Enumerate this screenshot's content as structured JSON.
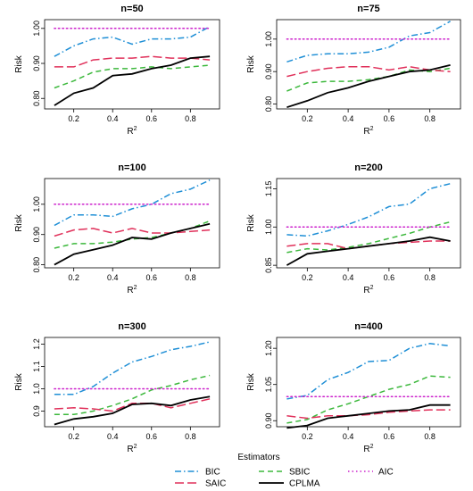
{
  "legend": {
    "title": "Estimators",
    "position": "bottom",
    "entries": [
      {
        "name": "BIC",
        "color": "#1f8fd6",
        "dash": "dashdot"
      },
      {
        "name": "SBIC",
        "color": "#3cb83c",
        "dash": "dashed"
      },
      {
        "name": "AIC",
        "color": "#cc22cc",
        "dash": "dotted"
      },
      {
        "name": "SAIC",
        "color": "#e0305a",
        "dash": "longdash"
      },
      {
        "name": "CPLMA",
        "color": "#000000",
        "dash": "solid"
      }
    ]
  },
  "chart_data": [
    {
      "type": "line",
      "title": "n=50",
      "xlabel": "R",
      "xlabel_sup": "2",
      "ylabel": "Risk",
      "xlim": [
        0.05,
        0.95
      ],
      "ylim": [
        0.77,
        1.025
      ],
      "xticks": [
        0.2,
        0.4,
        0.6,
        0.8
      ],
      "xtick_labels": [
        "0.2",
        "0.4",
        "0.6",
        "0.8"
      ],
      "yticks": [
        0.8,
        0.9,
        1.0
      ],
      "ytick_labels": [
        "0.80",
        "0.90",
        "1.00"
      ],
      "x": [
        0.1,
        0.2,
        0.3,
        0.4,
        0.5,
        0.6,
        0.7,
        0.8,
        0.9
      ],
      "series": [
        {
          "name": "BIC",
          "values": [
            0.92,
            0.95,
            0.97,
            0.975,
            0.955,
            0.97,
            0.97,
            0.975,
            1.005
          ]
        },
        {
          "name": "SBIC",
          "values": [
            0.83,
            0.85,
            0.875,
            0.885,
            0.885,
            0.89,
            0.885,
            0.89,
            0.895
          ]
        },
        {
          "name": "AIC",
          "values": [
            1.0,
            1.0,
            1.0,
            1.0,
            1.0,
            1.0,
            1.0,
            1.0,
            1.0
          ]
        },
        {
          "name": "SAIC",
          "values": [
            0.89,
            0.89,
            0.91,
            0.915,
            0.915,
            0.92,
            0.915,
            0.915,
            0.91
          ]
        },
        {
          "name": "CPLMA",
          "values": [
            0.78,
            0.815,
            0.83,
            0.865,
            0.87,
            0.885,
            0.895,
            0.915,
            0.92
          ]
        }
      ]
    },
    {
      "type": "line",
      "title": "n=75",
      "xlabel": "R",
      "xlabel_sup": "2",
      "ylabel": "Risk",
      "xlim": [
        0.05,
        0.95
      ],
      "ylim": [
        0.785,
        1.06
      ],
      "xticks": [
        0.2,
        0.4,
        0.6,
        0.8
      ],
      "xtick_labels": [
        "0.2",
        "0.4",
        "0.6",
        "0.8"
      ],
      "yticks": [
        0.8,
        0.9,
        1.0
      ],
      "ytick_labels": [
        "0.80",
        "0.90",
        "1.00"
      ],
      "x": [
        0.1,
        0.2,
        0.3,
        0.4,
        0.5,
        0.6,
        0.7,
        0.8,
        0.9
      ],
      "series": [
        {
          "name": "BIC",
          "values": [
            0.93,
            0.95,
            0.955,
            0.955,
            0.96,
            0.975,
            1.01,
            1.02,
            1.055
          ]
        },
        {
          "name": "SBIC",
          "values": [
            0.84,
            0.865,
            0.87,
            0.87,
            0.875,
            0.885,
            0.905,
            0.9,
            0.91
          ]
        },
        {
          "name": "AIC",
          "values": [
            1.0,
            1.0,
            1.0,
            1.0,
            1.0,
            1.0,
            1.0,
            1.0,
            1.0
          ]
        },
        {
          "name": "SAIC",
          "values": [
            0.885,
            0.9,
            0.91,
            0.915,
            0.915,
            0.905,
            0.915,
            0.905,
            0.9
          ]
        },
        {
          "name": "CPLMA",
          "values": [
            0.79,
            0.81,
            0.835,
            0.85,
            0.87,
            0.885,
            0.9,
            0.905,
            0.92
          ]
        }
      ]
    },
    {
      "type": "line",
      "title": "n=100",
      "xlabel": "R",
      "xlabel_sup": "2",
      "ylabel": "Risk",
      "xlim": [
        0.05,
        0.95
      ],
      "ylim": [
        0.79,
        1.085
      ],
      "xticks": [
        0.2,
        0.4,
        0.6,
        0.8
      ],
      "xtick_labels": [
        "0.2",
        "0.4",
        "0.6",
        "0.8"
      ],
      "yticks": [
        0.8,
        0.9,
        1.0
      ],
      "ytick_labels": [
        "0.80",
        "0.90",
        "1.00"
      ],
      "x": [
        0.1,
        0.2,
        0.3,
        0.4,
        0.5,
        0.6,
        0.7,
        0.8,
        0.9
      ],
      "series": [
        {
          "name": "BIC",
          "values": [
            0.93,
            0.965,
            0.965,
            0.96,
            0.985,
            1.0,
            1.035,
            1.05,
            1.08
          ]
        },
        {
          "name": "SBIC",
          "values": [
            0.855,
            0.87,
            0.87,
            0.875,
            0.885,
            0.89,
            0.905,
            0.92,
            0.945
          ]
        },
        {
          "name": "AIC",
          "values": [
            1.0,
            1.0,
            1.0,
            1.0,
            1.0,
            1.0,
            1.0,
            1.0,
            1.0
          ]
        },
        {
          "name": "SAIC",
          "values": [
            0.895,
            0.915,
            0.92,
            0.905,
            0.92,
            0.905,
            0.905,
            0.91,
            0.915
          ]
        },
        {
          "name": "CPLMA",
          "values": [
            0.8,
            0.835,
            0.85,
            0.865,
            0.89,
            0.885,
            0.905,
            0.92,
            0.935
          ]
        }
      ]
    },
    {
      "type": "line",
      "title": "n=200",
      "xlabel": "R",
      "xlabel_sup": "2",
      "ylabel": "Risk",
      "xlim": [
        0.05,
        0.95
      ],
      "ylim": [
        0.84,
        1.19
      ],
      "xticks": [
        0.2,
        0.4,
        0.6,
        0.8
      ],
      "xtick_labels": [
        "0.2",
        "0.4",
        "0.6",
        "0.8"
      ],
      "yticks": [
        0.85,
        1.0,
        1.15
      ],
      "ytick_labels": [
        "0.85",
        "1.00",
        "1.15"
      ],
      "x": [
        0.1,
        0.2,
        0.3,
        0.4,
        0.5,
        0.6,
        0.7,
        0.8,
        0.9
      ],
      "series": [
        {
          "name": "BIC",
          "values": [
            0.97,
            0.965,
            0.985,
            1.01,
            1.04,
            1.08,
            1.09,
            1.15,
            1.17
          ]
        },
        {
          "name": "SBIC",
          "values": [
            0.9,
            0.915,
            0.91,
            0.92,
            0.935,
            0.955,
            0.975,
            1.0,
            1.02
          ]
        },
        {
          "name": "AIC",
          "values": [
            1.0,
            1.0,
            1.0,
            1.0,
            1.0,
            1.0,
            1.0,
            1.0,
            1.0
          ]
        },
        {
          "name": "SAIC",
          "values": [
            0.925,
            0.935,
            0.935,
            0.915,
            0.925,
            0.935,
            0.94,
            0.945,
            0.945
          ]
        },
        {
          "name": "CPLMA",
          "values": [
            0.85,
            0.895,
            0.905,
            0.915,
            0.925,
            0.935,
            0.945,
            0.96,
            0.945
          ]
        }
      ]
    },
    {
      "type": "line",
      "title": "n=300",
      "xlabel": "R",
      "xlabel_sup": "2",
      "ylabel": "Risk",
      "xlim": [
        0.05,
        0.95
      ],
      "ylim": [
        0.83,
        1.23
      ],
      "xticks": [
        0.2,
        0.4,
        0.6,
        0.8
      ],
      "xtick_labels": [
        "0.2",
        "0.4",
        "0.6",
        "0.8"
      ],
      "yticks": [
        0.9,
        1.0,
        1.1,
        1.2
      ],
      "ytick_labels": [
        "0.9",
        "1.0",
        "1.1",
        "1.2"
      ],
      "x": [
        0.1,
        0.2,
        0.3,
        0.4,
        0.5,
        0.6,
        0.7,
        0.8,
        0.9
      ],
      "series": [
        {
          "name": "BIC",
          "values": [
            0.975,
            0.975,
            1.01,
            1.07,
            1.12,
            1.145,
            1.175,
            1.19,
            1.21
          ]
        },
        {
          "name": "SBIC",
          "values": [
            0.885,
            0.885,
            0.9,
            0.925,
            0.955,
            0.995,
            1.015,
            1.04,
            1.06
          ]
        },
        {
          "name": "AIC",
          "values": [
            1.0,
            1.0,
            1.0,
            1.0,
            1.0,
            1.0,
            1.0,
            1.0,
            1.0
          ]
        },
        {
          "name": "SAIC",
          "values": [
            0.91,
            0.915,
            0.91,
            0.9,
            0.935,
            0.935,
            0.915,
            0.935,
            0.955
          ]
        },
        {
          "name": "CPLMA",
          "values": [
            0.84,
            0.865,
            0.875,
            0.89,
            0.93,
            0.935,
            0.925,
            0.95,
            0.965
          ]
        }
      ]
    },
    {
      "type": "line",
      "title": "n=400",
      "xlabel": "R",
      "xlabel_sup": "2",
      "ylabel": "Risk",
      "xlim": [
        0.05,
        0.95
      ],
      "ylim": [
        0.875,
        1.245
      ],
      "xticks": [
        0.2,
        0.4,
        0.6,
        0.8
      ],
      "xtick_labels": [
        "0.2",
        "0.4",
        "0.6",
        "0.8"
      ],
      "yticks": [
        0.9,
        1.05,
        1.2
      ],
      "ytick_labels": [
        "0.90",
        "1.05",
        "1.20"
      ],
      "x": [
        0.1,
        0.2,
        0.3,
        0.4,
        0.5,
        0.6,
        0.7,
        0.8,
        0.9
      ],
      "series": [
        {
          "name": "BIC",
          "values": [
            0.99,
            1.005,
            1.07,
            1.1,
            1.145,
            1.15,
            1.2,
            1.22,
            1.21
          ]
        },
        {
          "name": "SBIC",
          "values": [
            0.89,
            0.905,
            0.945,
            0.97,
            1.0,
            1.03,
            1.05,
            1.085,
            1.08
          ]
        },
        {
          "name": "AIC",
          "values": [
            1.0,
            1.0,
            1.0,
            1.0,
            1.0,
            1.0,
            1.0,
            1.0,
            1.0
          ]
        },
        {
          "name": "SAIC",
          "values": [
            0.92,
            0.91,
            0.92,
            0.92,
            0.925,
            0.935,
            0.94,
            0.945,
            0.945
          ]
        },
        {
          "name": "CPLMA",
          "values": [
            0.87,
            0.88,
            0.91,
            0.92,
            0.93,
            0.94,
            0.945,
            0.965,
            0.965
          ]
        }
      ]
    }
  ]
}
